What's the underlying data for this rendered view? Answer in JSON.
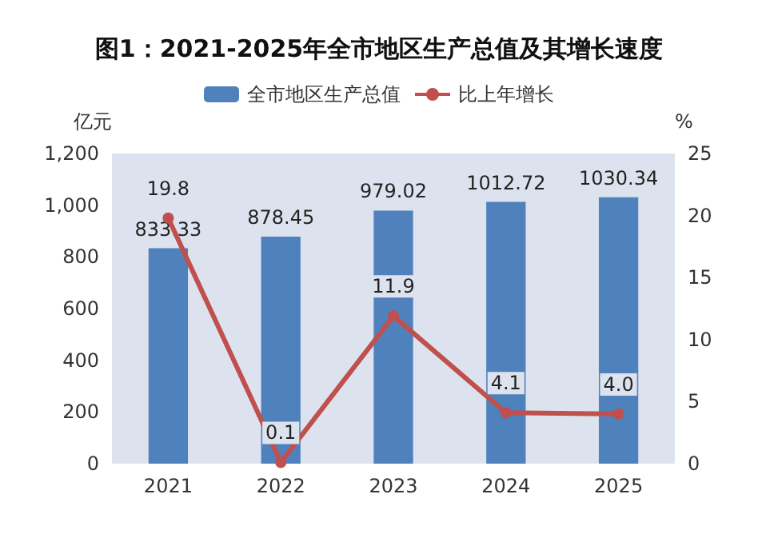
{
  "chart_data": {
    "type": "bar",
    "title": "图1：2021-2025年全市地区生产总值及其增长速度",
    "ylabel": "亿元",
    "y2label": "%",
    "categories": [
      "2021",
      "2022",
      "2023",
      "2024",
      "2025"
    ],
    "series": [
      {
        "name": "全市地区生产总值",
        "color": "#4f81bd",
        "values": [
          833.33,
          878.45,
          979.02,
          1012.72,
          1030.34
        ],
        "value_labels": [
          "833.33",
          "878.45",
          "979.02",
          "1012.72",
          "1030.34"
        ]
      },
      {
        "name": "比上年增长",
        "type": "line",
        "axis": "y2",
        "color": "#c0504d",
        "values": [
          19.8,
          0.1,
          11.9,
          4.1,
          4.0
        ],
        "value_labels": [
          "19.8",
          "0.1",
          "11.9",
          "4.1",
          "4.0"
        ],
        "marker": "circle"
      }
    ],
    "ylim": [
      0,
      1200
    ],
    "yticks": [
      {
        "value": 0,
        "label": "0"
      },
      {
        "value": 200,
        "label": "200"
      },
      {
        "value": 400,
        "label": "400"
      },
      {
        "value": 600,
        "label": "600"
      },
      {
        "value": 800,
        "label": "800"
      },
      {
        "value": 1000,
        "label": "1,000"
      },
      {
        "value": 1200,
        "label": "1,200"
      }
    ],
    "y2lim": [
      0,
      25
    ],
    "y2ticks": [
      0,
      5,
      10,
      15,
      20,
      25
    ],
    "grid": false,
    "legend": "top"
  }
}
